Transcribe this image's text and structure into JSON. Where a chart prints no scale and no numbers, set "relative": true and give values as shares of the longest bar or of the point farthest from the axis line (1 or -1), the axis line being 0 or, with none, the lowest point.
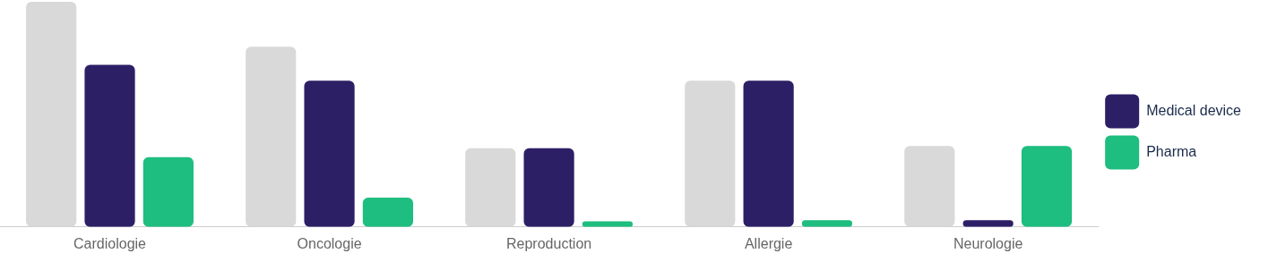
{
  "chart_data": {
    "type": "bar",
    "relative": true,
    "categories": [
      "Cardiologie",
      "Oncologie",
      "Reproduction",
      "Allergie",
      "Neurologie"
    ],
    "series": [
      {
        "color": "#d9d9d9",
        "values": [
          1,
          0.8,
          0.35,
          0.65,
          0.36
        ]
      },
      {
        "name": "Medical device",
        "color": "#2d1f66",
        "values": [
          0.72,
          0.65,
          0.35,
          0.65,
          0.03
        ]
      },
      {
        "name": "Pharma",
        "color": "#1ebd80",
        "values": [
          0.31,
          0.13,
          0.025,
          0.03,
          0.36
        ]
      }
    ],
    "legend": "right",
    "grid": false
  }
}
